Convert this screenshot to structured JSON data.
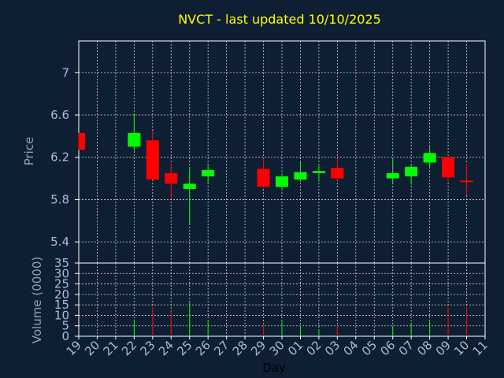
{
  "chart_data": {
    "type": "candlestick",
    "title": "NVCT - last updated 10/10/2025",
    "xlabel": "Day",
    "ylabel_price": "Price",
    "ylabel_volume": "Volume (0000)",
    "price_ylim": [
      5.2,
      7.3
    ],
    "price_ticks": [
      "5.4",
      "5.8",
      "6.2",
      "6.6",
      "7"
    ],
    "price_tick_values": [
      5.4,
      5.8,
      6.2,
      6.6,
      7.0
    ],
    "volume_ylim": [
      0,
      35
    ],
    "volume_ticks": [
      "0",
      "5",
      "10",
      "15",
      "20",
      "25",
      "30",
      "35"
    ],
    "volume_tick_values": [
      0,
      5,
      10,
      15,
      20,
      25,
      30,
      35
    ],
    "x_labels": [
      "19",
      "20",
      "21",
      "22",
      "23",
      "24",
      "25",
      "26",
      "27",
      "28",
      "29",
      "30",
      "01",
      "02",
      "03",
      "04",
      "05",
      "06",
      "07",
      "08",
      "09",
      "10",
      "11"
    ],
    "grid": true,
    "colors": {
      "background": "#0f1f33",
      "title": "#ffff00",
      "axis_text": "#8fa3bf",
      "tick_text": "#a9bcd6",
      "xlabel": "#000000",
      "up": "#00ff00",
      "down": "#ff0000",
      "grid": "#d0d0d0"
    },
    "candles": [
      {
        "day": "19",
        "open": 6.43,
        "high": 6.43,
        "low": 6.27,
        "close": 6.27
      },
      {
        "day": "22",
        "open": 6.3,
        "high": 6.6,
        "low": 6.26,
        "close": 6.43
      },
      {
        "day": "23",
        "open": 6.36,
        "high": 6.45,
        "low": 5.99,
        "close": 5.99
      },
      {
        "day": "24",
        "open": 6.05,
        "high": 6.14,
        "low": 5.81,
        "close": 5.95
      },
      {
        "day": "25",
        "open": 5.9,
        "high": 6.1,
        "low": 5.56,
        "close": 5.95
      },
      {
        "day": "26",
        "open": 6.02,
        "high": 6.14,
        "low": 5.96,
        "close": 6.08
      },
      {
        "day": "29",
        "open": 6.09,
        "high": 6.19,
        "low": 5.92,
        "close": 5.92
      },
      {
        "day": "30",
        "open": 5.92,
        "high": 6.05,
        "low": 5.89,
        "close": 6.02
      },
      {
        "day": "01",
        "open": 5.99,
        "high": 6.16,
        "low": 5.97,
        "close": 6.06
      },
      {
        "day": "02",
        "open": 6.05,
        "high": 6.12,
        "low": 5.97,
        "close": 6.07
      },
      {
        "day": "03",
        "open": 6.1,
        "high": 6.19,
        "low": 5.98,
        "close": 6.0
      },
      {
        "day": "06",
        "open": 6.0,
        "high": 6.19,
        "low": 5.96,
        "close": 6.05
      },
      {
        "day": "07",
        "open": 6.02,
        "high": 6.12,
        "low": 5.94,
        "close": 6.11
      },
      {
        "day": "08",
        "open": 6.15,
        "high": 6.3,
        "low": 6.1,
        "close": 6.24
      },
      {
        "day": "09",
        "open": 6.2,
        "high": 6.2,
        "low": 5.96,
        "close": 6.01
      },
      {
        "day": "10",
        "open": 5.98,
        "high": 6.14,
        "low": 5.84,
        "close": 5.97
      }
    ],
    "volume": [
      {
        "day": "22",
        "value": 8,
        "dir": "up"
      },
      {
        "day": "23",
        "value": 14,
        "dir": "down"
      },
      {
        "day": "24",
        "value": 12,
        "dir": "down"
      },
      {
        "day": "25",
        "value": 16,
        "dir": "up"
      },
      {
        "day": "26",
        "value": 7,
        "dir": "up"
      },
      {
        "day": "29",
        "value": 6,
        "dir": "down"
      },
      {
        "day": "30",
        "value": 7,
        "dir": "up"
      },
      {
        "day": "01",
        "value": 5,
        "dir": "up"
      },
      {
        "day": "02",
        "value": 3,
        "dir": "up"
      },
      {
        "day": "03",
        "value": 5,
        "dir": "down"
      },
      {
        "day": "06",
        "value": 5,
        "dir": "up"
      },
      {
        "day": "07",
        "value": 6,
        "dir": "up"
      },
      {
        "day": "08",
        "value": 7,
        "dir": "up"
      },
      {
        "day": "09",
        "value": 14,
        "dir": "down"
      },
      {
        "day": "10",
        "value": 14,
        "dir": "down"
      }
    ]
  }
}
